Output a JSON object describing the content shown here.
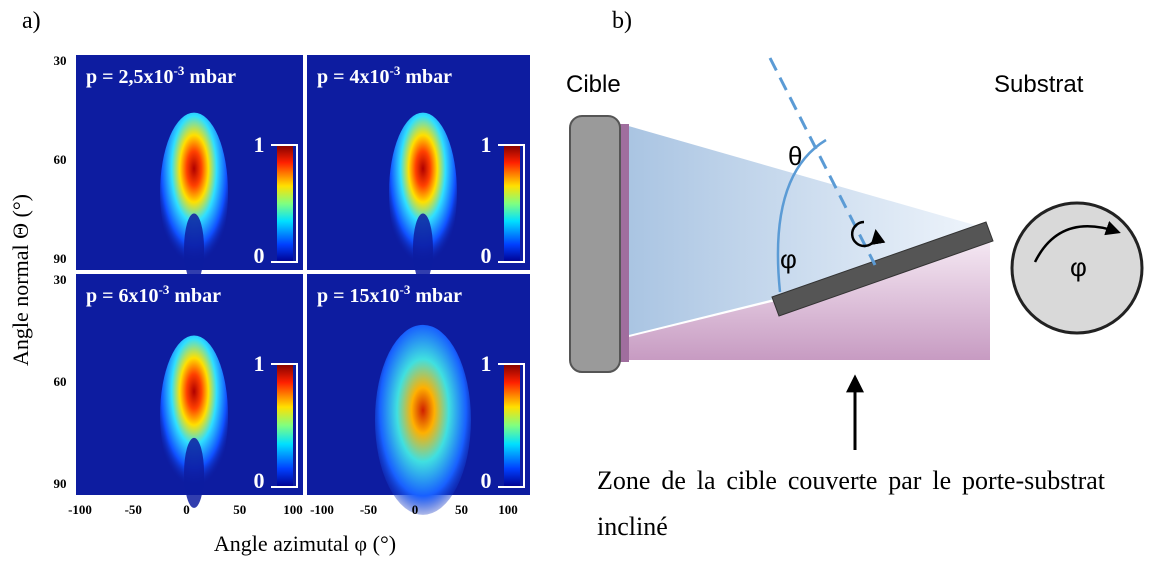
{
  "panel_a": {
    "label": "a)",
    "y_axis_label": "Angle normal Θ (°)",
    "x_axis_label": "Angle azimutal φ (°)",
    "y_tick_labels": [
      "30",
      "60",
      "90"
    ],
    "x_tick_labels": [
      "-100",
      "-50",
      "0",
      "50",
      "100"
    ],
    "colorbar_labels": [
      "1",
      "0"
    ],
    "plots": [
      {
        "prefix": "p = 2,5x10",
        "exponent": "-3",
        "unit": "mbar"
      },
      {
        "prefix": "p = 4x10",
        "exponent": "-3",
        "unit": "mbar"
      },
      {
        "prefix": "p = 6x10",
        "exponent": "-3",
        "unit": "mbar"
      },
      {
        "prefix": "p = 15x10",
        "exponent": "-3",
        "unit": "mbar"
      }
    ]
  },
  "panel_b": {
    "label": "b)",
    "target_label": "Cible",
    "substrate_label": "Substrat",
    "theta_label": "θ",
    "phi_label": "φ",
    "rotation_label": "φ",
    "caption": "Zone de la cible couverte par le porte-substrat incliné"
  }
}
